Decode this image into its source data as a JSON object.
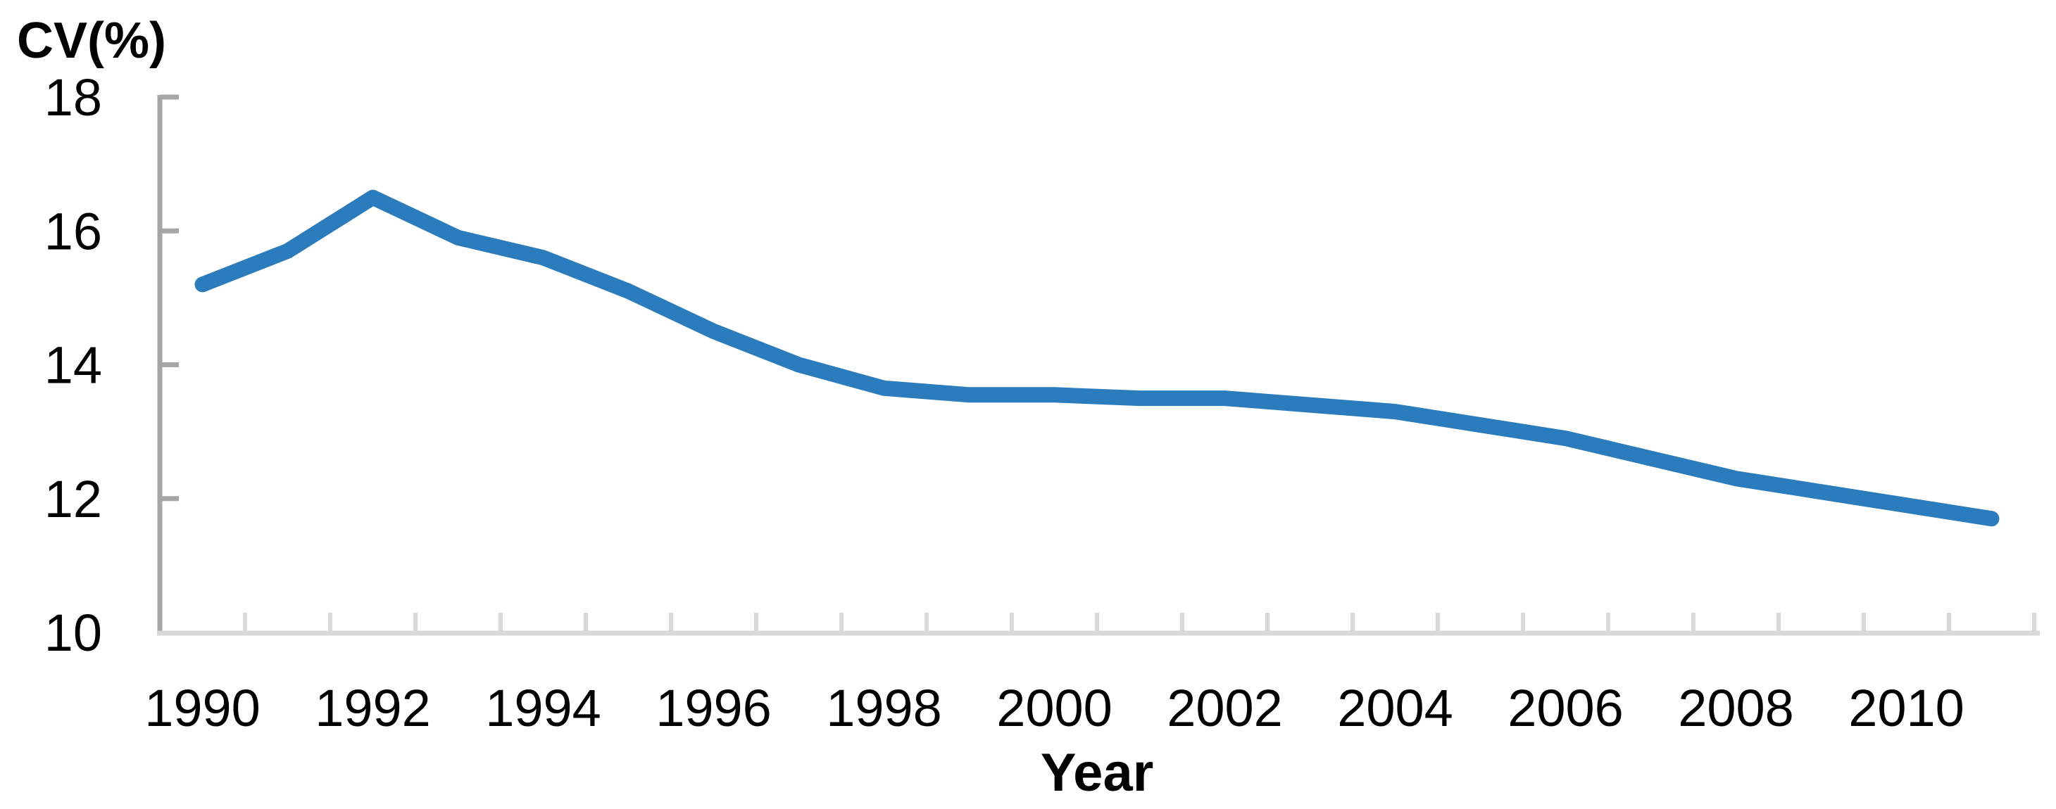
{
  "chart_data": {
    "type": "line",
    "title": "CV(%)",
    "xlabel": "Year",
    "ylabel": "CV(%)",
    "x": [
      1990,
      1991,
      1992,
      1993,
      1994,
      1995,
      1996,
      1997,
      1998,
      1999,
      2000,
      2001,
      2002,
      2003,
      2004,
      2005,
      2006,
      2007,
      2008,
      2009,
      2010,
      2011
    ],
    "series": [
      {
        "name": "CV",
        "values": [
          15.2,
          15.7,
          16.5,
          15.9,
          15.6,
          15.1,
          14.5,
          14.0,
          13.65,
          13.55,
          13.55,
          13.5,
          13.5,
          13.4,
          13.3,
          13.1,
          12.9,
          12.6,
          12.3,
          12.1,
          11.9,
          11.7
        ]
      }
    ],
    "ylim": [
      10,
      18
    ],
    "yticks": [
      18,
      16,
      14,
      12,
      10
    ],
    "xtick_labels": [
      "1990",
      "1992",
      "1994",
      "1996",
      "1998",
      "2000",
      "2002",
      "2004",
      "2006",
      "2008",
      "2010"
    ],
    "grid": false,
    "legend": "none",
    "colors": {
      "line": "#2B7CBC",
      "y_axis": "#A6A6A6",
      "x_axis": "#D9D9D9",
      "text": "#000000"
    }
  }
}
